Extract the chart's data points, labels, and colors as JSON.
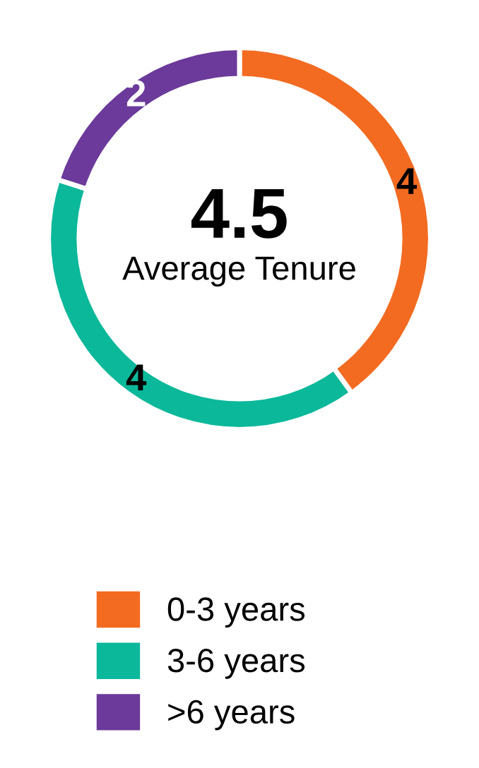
{
  "chart_data": {
    "type": "donut",
    "categories": [
      "0-3 years",
      "3-6 years",
      ">6 years"
    ],
    "values": [
      4,
      4,
      2
    ],
    "colors": [
      "#f26b21",
      "#0bb89a",
      "#6b3a9a"
    ],
    "data_labels": true,
    "legend": "bottom",
    "annotations": [
      "4.5",
      "Average Tenure"
    ]
  }
}
